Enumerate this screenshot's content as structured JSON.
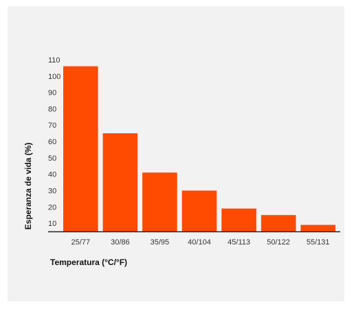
{
  "chart_data": {
    "type": "bar",
    "categories": [
      "25/77",
      "30/86",
      "35/95",
      "40/104",
      "45/113",
      "50/122",
      "55/131"
    ],
    "values": [
      106,
      65,
      41,
      30,
      19,
      15,
      9
    ],
    "xlabel": "Temperatura (°C/°F)",
    "ylabel": "Esperanza de vida (%)",
    "yticks": [
      10,
      20,
      30,
      40,
      50,
      60,
      70,
      80,
      90,
      100,
      110
    ],
    "ylim": [
      5,
      110
    ],
    "grid": false,
    "bar_color": "#ff4a00",
    "axis_color": "#222222"
  }
}
